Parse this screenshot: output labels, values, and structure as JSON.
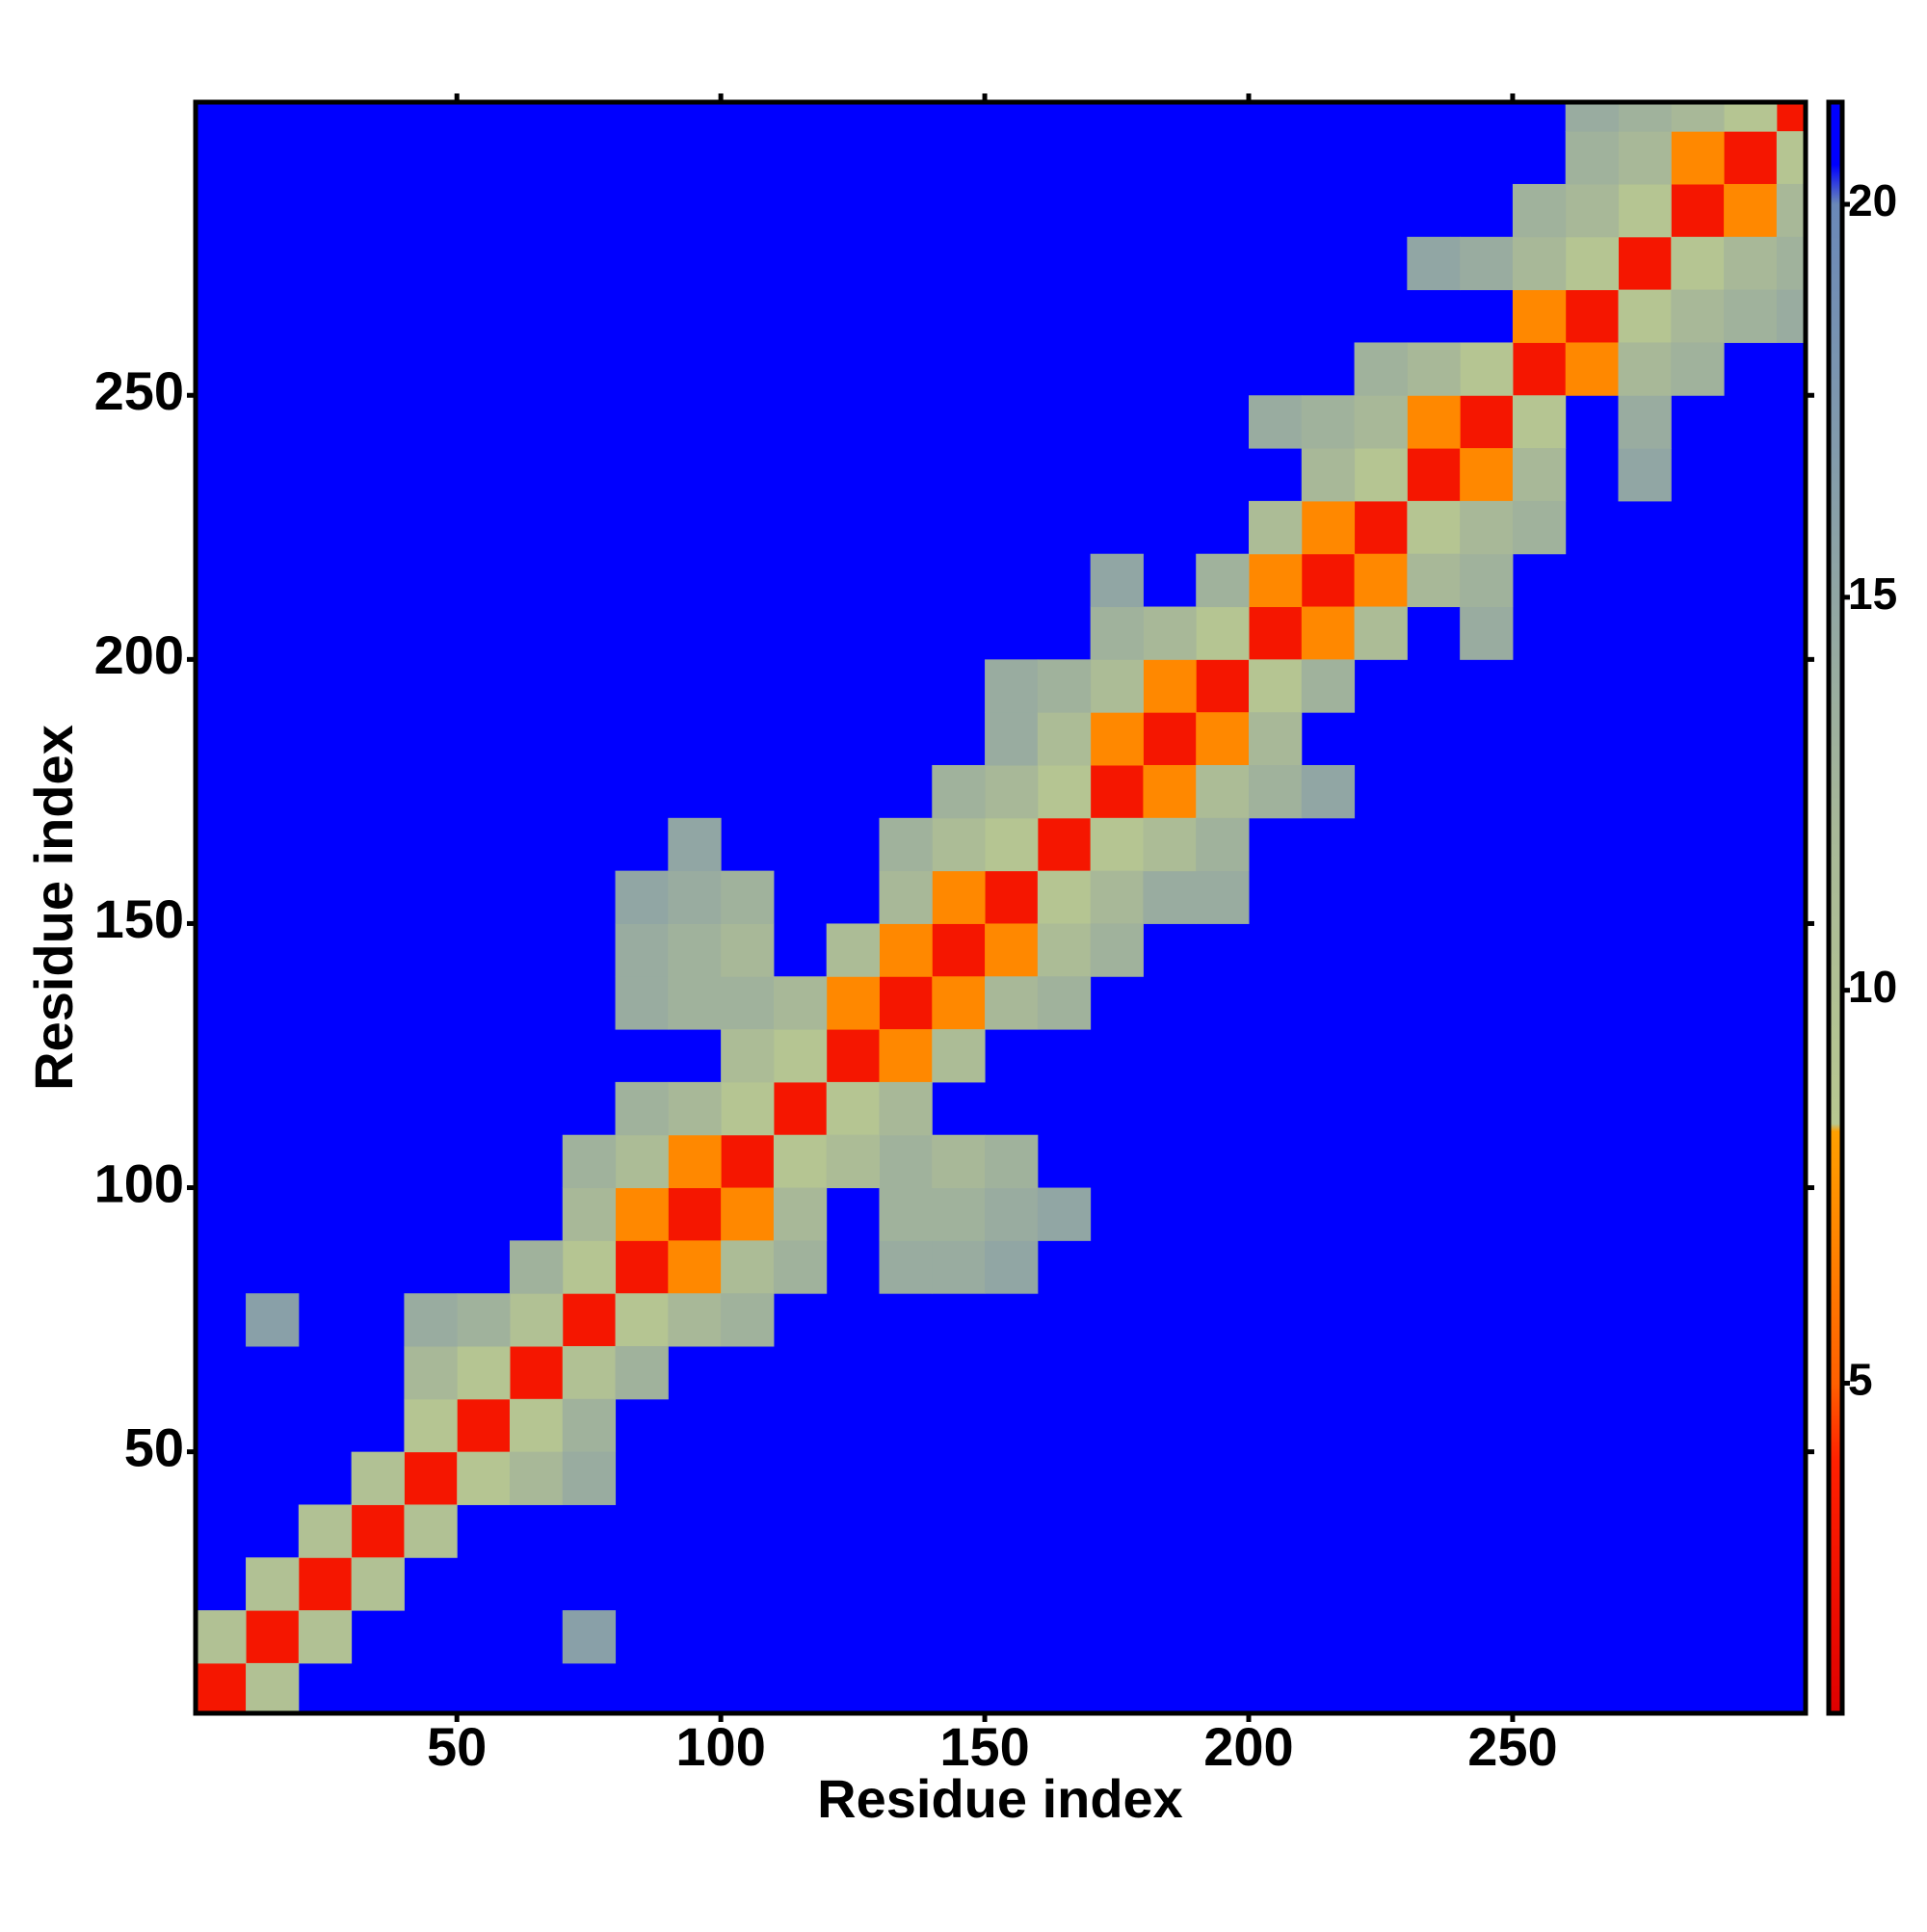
{
  "chart_data": {
    "type": "heatmap",
    "x_label": "Residue index",
    "y_label": "Residue index",
    "xlim": [
      0.5,
      305.5
    ],
    "ylim": [
      0.5,
      305.5
    ],
    "xticks": [
      50,
      100,
      150,
      200,
      250
    ],
    "yticks": [
      50,
      100,
      150,
      200,
      250
    ],
    "symmetric": true,
    "x": [
      5,
      15,
      25,
      35,
      45,
      55,
      65,
      75,
      85,
      95,
      105,
      115,
      125,
      135,
      145,
      155,
      165,
      175,
      185,
      195,
      205,
      215,
      225,
      235,
      245,
      255,
      265,
      275,
      285,
      295,
      305,
      5,
      15,
      25,
      35,
      45,
      55,
      65,
      75,
      85,
      95,
      105,
      115,
      125,
      135,
      145,
      155,
      165,
      175,
      185,
      195,
      205,
      215,
      225,
      235,
      245,
      255,
      265,
      275,
      285,
      295,
      45,
      55,
      45,
      65,
      75,
      85,
      75,
      95,
      85,
      85,
      95,
      105,
      115,
      105,
      85,
      95,
      105,
      85,
      95,
      105,
      95,
      125,
      135,
      145,
      155,
      135,
      145,
      155,
      155,
      165,
      175,
      165,
      185,
      175,
      195,
      205,
      215,
      175,
      205,
      215,
      225,
      235,
      225,
      235,
      245,
      255,
      265,
      275,
      265,
      255,
      285,
      275,
      265,
      15
    ],
    "y": [
      5,
      15,
      25,
      35,
      45,
      55,
      65,
      75,
      85,
      95,
      105,
      115,
      125,
      135,
      145,
      155,
      165,
      175,
      185,
      195,
      205,
      215,
      225,
      235,
      245,
      255,
      265,
      275,
      285,
      295,
      305,
      15,
      25,
      35,
      45,
      55,
      65,
      75,
      85,
      95,
      105,
      115,
      125,
      135,
      145,
      155,
      165,
      175,
      185,
      195,
      205,
      215,
      225,
      235,
      245,
      255,
      265,
      275,
      285,
      295,
      305,
      65,
      75,
      75,
      85,
      95,
      105,
      105,
      115,
      115,
      135,
      135,
      135,
      135,
      125,
      145,
      145,
      145,
      155,
      155,
      155,
      165,
      145,
      155,
      165,
      175,
      165,
      175,
      185,
      195,
      185,
      195,
      195,
      205,
      205,
      215,
      225,
      235,
      215,
      245,
      245,
      245,
      255,
      255,
      275,
      275,
      275,
      285,
      295,
      295,
      285,
      305,
      305,
      305,
      75
    ],
    "values": [
      3,
      3,
      3,
      3,
      3,
      3,
      3,
      3,
      3,
      3,
      3,
      3,
      3,
      3,
      3,
      3,
      3,
      3,
      3,
      3,
      3,
      3,
      3,
      3,
      3,
      3,
      3,
      3,
      3,
      3,
      3,
      10,
      10,
      10,
      10,
      9,
      9,
      10,
      9,
      7,
      7,
      9,
      9,
      7,
      7,
      7,
      9,
      9,
      7,
      7,
      9,
      7,
      7,
      9,
      7,
      9,
      7,
      9,
      9,
      7,
      9,
      12,
      13,
      14,
      13,
      12,
      11,
      13,
      12,
      13,
      14,
      13,
      13,
      12,
      11,
      14,
      13,
      12,
      15,
      14,
      13,
      15,
      11,
      12,
      11,
      12,
      13,
      13,
      14,
      14,
      11,
      11,
      13,
      12,
      13,
      13,
      11,
      12,
      15,
      14,
      13,
      12,
      12,
      13,
      15,
      14,
      12,
      12,
      12,
      13,
      13,
      12,
      13,
      14,
      16
    ],
    "colorbar": {
      "lim": [
        0.8,
        21.3
      ],
      "ticks": [
        5,
        10,
        15,
        20
      ],
      "colorscale": [
        [
          0.8,
          "#e00000"
        ],
        [
          4,
          "#ff2000"
        ],
        [
          5,
          "#ff6000"
        ],
        [
          8.2,
          "#ffa000"
        ],
        [
          8.3,
          "#b8c890"
        ],
        [
          12,
          "#a8b898"
        ],
        [
          20,
          "#6a88b8"
        ],
        [
          20.5,
          "#0000ff"
        ],
        [
          21.3,
          "#0000ff"
        ]
      ]
    }
  }
}
